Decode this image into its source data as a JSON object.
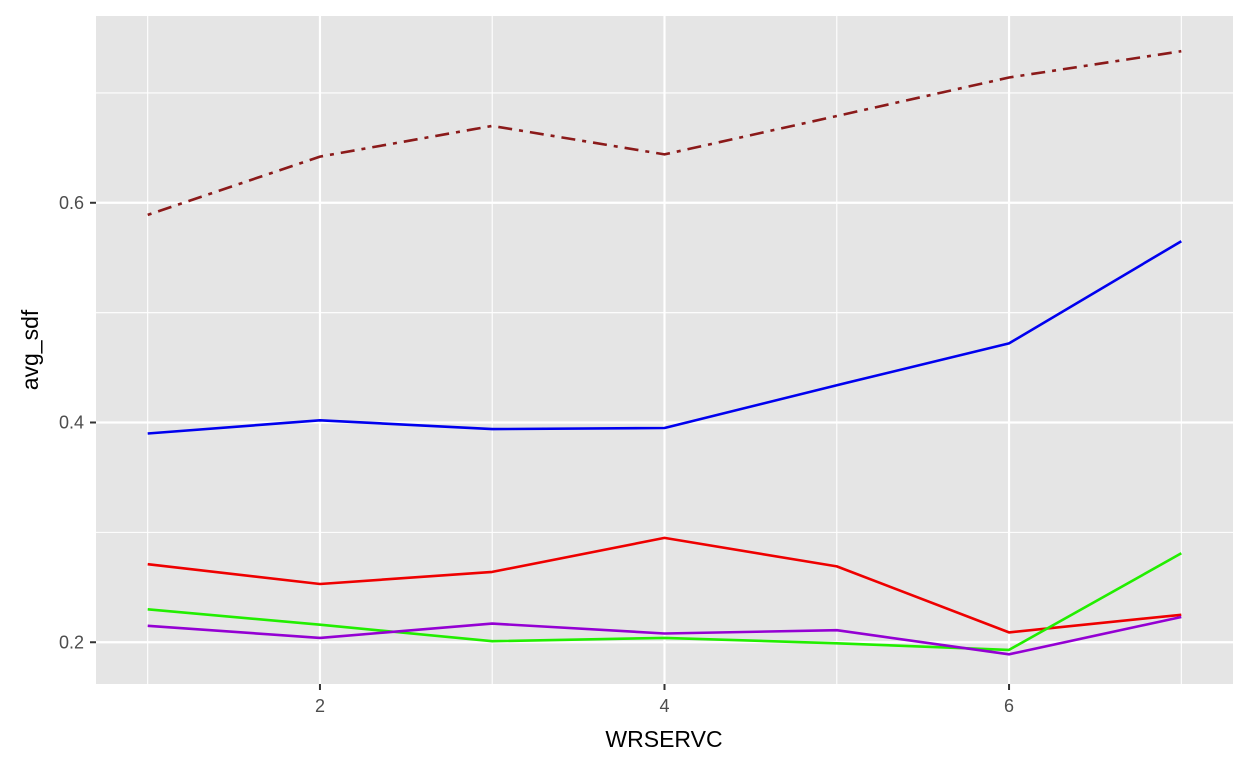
{
  "chart_data": {
    "type": "line",
    "title": "",
    "xlabel": "WRSERVC",
    "ylabel": "avg_sdf",
    "xlim": [
      0.7,
      7.3
    ],
    "ylim": [
      0.162,
      0.77
    ],
    "x_ticks": [
      2,
      4,
      6
    ],
    "x_tick_labels": [
      "2",
      "4",
      "6"
    ],
    "x_minor_ticks": [
      1,
      3,
      5,
      7
    ],
    "y_ticks": [
      0.2,
      0.4,
      0.6
    ],
    "y_tick_labels": [
      "0.2",
      "0.4",
      "0.6"
    ],
    "y_minor_ticks": [
      0.3,
      0.5,
      0.7
    ],
    "grid": true,
    "legend": "none",
    "panel_background": "#e5e5e5",
    "grid_color": "#ffffff",
    "x": [
      1,
      2,
      3,
      4,
      5,
      6,
      7
    ],
    "series": [
      {
        "color": "#8b1a1a",
        "dash": "dotdash",
        "values": [
          0.589,
          0.642,
          0.67,
          0.644,
          0.679,
          0.714,
          0.738
        ]
      },
      {
        "color": "#0000ee",
        "dash": "solid",
        "values": [
          0.39,
          0.402,
          0.394,
          0.395,
          0.434,
          0.472,
          0.565
        ]
      },
      {
        "color": "#ee0000",
        "dash": "solid",
        "values": [
          0.271,
          0.253,
          0.264,
          0.295,
          0.269,
          0.209,
          0.225
        ]
      },
      {
        "color": "#22ee00",
        "dash": "solid",
        "values": [
          0.23,
          0.216,
          0.201,
          0.204,
          0.199,
          0.193,
          0.281
        ]
      },
      {
        "color": "#9400d3",
        "dash": "solid",
        "values": [
          0.215,
          0.204,
          0.217,
          0.208,
          0.211,
          0.189,
          0.223
        ]
      }
    ]
  }
}
